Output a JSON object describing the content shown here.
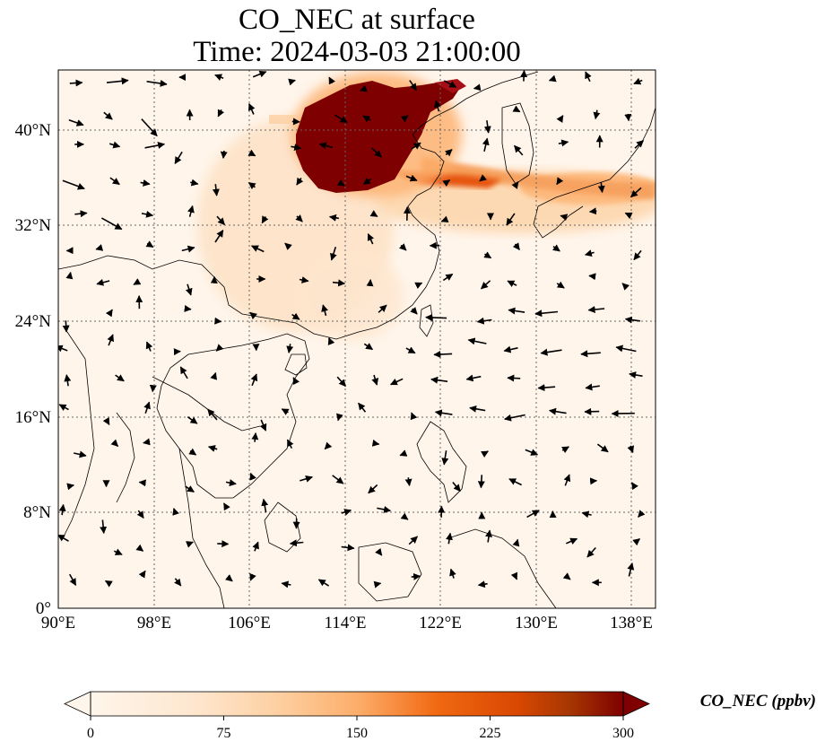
{
  "title": {
    "line1": "CO_NEC at surface",
    "line2": "Time: 2024-03-03 21:00:00"
  },
  "map": {
    "lon_range": [
      90,
      140
    ],
    "lat_range": [
      0,
      45
    ],
    "lon_ticks": [
      "90°E",
      "98°E",
      "106°E",
      "114°E",
      "122°E",
      "130°E",
      "138°E"
    ],
    "lat_ticks": [
      "0°",
      "8°N",
      "16°N",
      "24°N",
      "32°N",
      "40°N"
    ],
    "gridlines": true,
    "overlays": [
      "coastlines",
      "country-borders",
      "wind-vectors"
    ]
  },
  "colorbar": {
    "label": "CO_NEC (ppbv)",
    "ticks": [
      "0",
      "75",
      "150",
      "225",
      "300"
    ],
    "range": [
      0,
      300
    ],
    "extend": "both",
    "colormap": [
      "#fff5eb",
      "#fdd0a2",
      "#fdae6b",
      "#fd8d3c",
      "#e6550d",
      "#a63603",
      "#7f0000"
    ]
  }
}
